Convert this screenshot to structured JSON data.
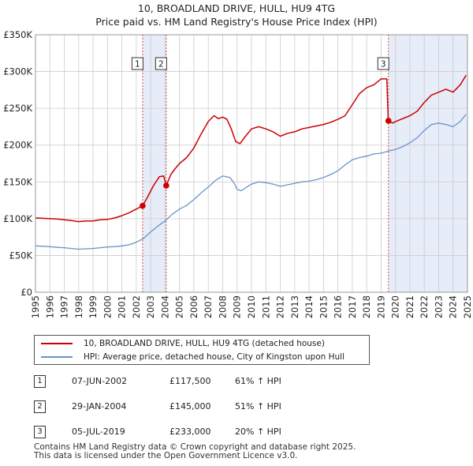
{
  "chart_data": {
    "type": "line",
    "title": "10, BROADLAND DRIVE, HULL, HU9 4TG",
    "subtitle": "Price paid vs. HM Land Registry's House Price Index (HPI)",
    "xlabel": "",
    "ylabel": "",
    "xlim": [
      1995,
      2025
    ],
    "ylim": [
      0,
      350000
    ],
    "grid": true,
    "legend_position": "bottom",
    "y_ticks": [
      {
        "value": 0,
        "label": "£0"
      },
      {
        "value": 50000,
        "label": "£50K"
      },
      {
        "value": 100000,
        "label": "£100K"
      },
      {
        "value": 150000,
        "label": "£150K"
      },
      {
        "value": 200000,
        "label": "£200K"
      },
      {
        "value": 250000,
        "label": "£250K"
      },
      {
        "value": 300000,
        "label": "£300K"
      },
      {
        "value": 350000,
        "label": "£350K"
      }
    ],
    "x_ticks": [
      "1995",
      "1996",
      "1997",
      "1998",
      "1999",
      "2000",
      "2001",
      "2002",
      "2003",
      "2004",
      "2005",
      "2006",
      "2007",
      "2008",
      "2009",
      "2010",
      "2011",
      "2012",
      "2013",
      "2014",
      "2015",
      "2016",
      "2017",
      "2018",
      "2019",
      "2020",
      "2021",
      "2022",
      "2023",
      "2024",
      "2025"
    ],
    "series": [
      {
        "name": "10, BROADLAND DRIVE, HULL, HU9 4TG (detached house)",
        "color": "#cc0000",
        "points": [
          [
            1995.0,
            101000
          ],
          [
            1995.5,
            100500
          ],
          [
            1996.0,
            100000
          ],
          [
            1996.5,
            99500
          ],
          [
            1997.0,
            98500
          ],
          [
            1997.5,
            97500
          ],
          [
            1998.0,
            96000
          ],
          [
            1998.5,
            97000
          ],
          [
            1999.0,
            97000
          ],
          [
            1999.5,
            98500
          ],
          [
            2000.0,
            99000
          ],
          [
            2000.5,
            101000
          ],
          [
            2001.0,
            104000
          ],
          [
            2001.5,
            108000
          ],
          [
            2002.0,
            113000
          ],
          [
            2002.44,
            117500
          ],
          [
            2002.8,
            130000
          ],
          [
            2003.2,
            145000
          ],
          [
            2003.6,
            157000
          ],
          [
            2003.9,
            158000
          ],
          [
            2004.08,
            145000
          ],
          [
            2004.4,
            160000
          ],
          [
            2004.7,
            168000
          ],
          [
            2005.0,
            175000
          ],
          [
            2005.5,
            183000
          ],
          [
            2006.0,
            196000
          ],
          [
            2006.5,
            215000
          ],
          [
            2007.0,
            232000
          ],
          [
            2007.4,
            240000
          ],
          [
            2007.7,
            236000
          ],
          [
            2008.0,
            238000
          ],
          [
            2008.3,
            235000
          ],
          [
            2008.6,
            222000
          ],
          [
            2008.9,
            205000
          ],
          [
            2009.2,
            202000
          ],
          [
            2009.5,
            210000
          ],
          [
            2010.0,
            222000
          ],
          [
            2010.5,
            225000
          ],
          [
            2011.0,
            222000
          ],
          [
            2011.5,
            218000
          ],
          [
            2012.0,
            212000
          ],
          [
            2012.5,
            216000
          ],
          [
            2013.0,
            218000
          ],
          [
            2013.5,
            222000
          ],
          [
            2014.0,
            224000
          ],
          [
            2014.5,
            226000
          ],
          [
            2015.0,
            228000
          ],
          [
            2015.5,
            231000
          ],
          [
            2016.0,
            235000
          ],
          [
            2016.5,
            240000
          ],
          [
            2017.0,
            255000
          ],
          [
            2017.5,
            270000
          ],
          [
            2018.0,
            278000
          ],
          [
            2018.5,
            282000
          ],
          [
            2019.0,
            290000
          ],
          [
            2019.4,
            290000
          ],
          [
            2019.5,
            233000
          ],
          [
            2019.8,
            230000
          ],
          [
            2020.0,
            232000
          ],
          [
            2020.5,
            236000
          ],
          [
            2021.0,
            240000
          ],
          [
            2021.5,
            246000
          ],
          [
            2022.0,
            258000
          ],
          [
            2022.5,
            268000
          ],
          [
            2023.0,
            272000
          ],
          [
            2023.5,
            276000
          ],
          [
            2024.0,
            272000
          ],
          [
            2024.5,
            282000
          ],
          [
            2024.9,
            295000
          ]
        ]
      },
      {
        "name": "HPI: Average price, detached house, City of Kingston upon Hull",
        "color": "#6b93c8",
        "points": [
          [
            1995.0,
            63000
          ],
          [
            1995.5,
            62500
          ],
          [
            1996.0,
            62000
          ],
          [
            1996.5,
            61000
          ],
          [
            1997.0,
            60500
          ],
          [
            1997.5,
            59500
          ],
          [
            1998.0,
            58500
          ],
          [
            1998.5,
            59000
          ],
          [
            1999.0,
            59500
          ],
          [
            1999.5,
            60500
          ],
          [
            2000.0,
            61500
          ],
          [
            2000.5,
            62000
          ],
          [
            2001.0,
            63000
          ],
          [
            2001.5,
            64500
          ],
          [
            2002.0,
            68000
          ],
          [
            2002.5,
            73000
          ],
          [
            2003.0,
            82000
          ],
          [
            2003.5,
            90000
          ],
          [
            2004.0,
            97000
          ],
          [
            2004.5,
            106000
          ],
          [
            2005.0,
            113000
          ],
          [
            2005.5,
            118000
          ],
          [
            2006.0,
            126000
          ],
          [
            2006.5,
            135000
          ],
          [
            2007.0,
            143000
          ],
          [
            2007.5,
            152000
          ],
          [
            2008.0,
            158000
          ],
          [
            2008.5,
            156000
          ],
          [
            2008.8,
            148000
          ],
          [
            2009.0,
            140000
          ],
          [
            2009.3,
            138000
          ],
          [
            2009.6,
            142000
          ],
          [
            2010.0,
            147000
          ],
          [
            2010.5,
            150000
          ],
          [
            2011.0,
            149000
          ],
          [
            2011.5,
            147000
          ],
          [
            2012.0,
            144000
          ],
          [
            2012.5,
            146000
          ],
          [
            2013.0,
            148000
          ],
          [
            2013.5,
            150000
          ],
          [
            2014.0,
            151000
          ],
          [
            2014.5,
            153000
          ],
          [
            2015.0,
            156000
          ],
          [
            2015.5,
            160000
          ],
          [
            2016.0,
            165000
          ],
          [
            2016.5,
            173000
          ],
          [
            2017.0,
            180000
          ],
          [
            2017.5,
            183000
          ],
          [
            2018.0,
            185000
          ],
          [
            2018.5,
            188000
          ],
          [
            2019.0,
            189000
          ],
          [
            2019.5,
            192000
          ],
          [
            2020.0,
            194000
          ],
          [
            2020.5,
            198000
          ],
          [
            2021.0,
            203000
          ],
          [
            2021.5,
            210000
          ],
          [
            2022.0,
            220000
          ],
          [
            2022.5,
            228000
          ],
          [
            2023.0,
            230000
          ],
          [
            2023.5,
            228000
          ],
          [
            2024.0,
            225000
          ],
          [
            2024.5,
            232000
          ],
          [
            2024.9,
            242000
          ]
        ]
      }
    ],
    "sales": [
      {
        "label": "1",
        "date": "07-JUN-2002",
        "x": 2002.44,
        "price": 117500,
        "price_text": "£117,500",
        "hpi_diff": "61% ↑ HPI"
      },
      {
        "label": "2",
        "date": "29-JAN-2004",
        "x": 2004.08,
        "price": 145000,
        "price_text": "£145,000",
        "hpi_diff": "51% ↑ HPI"
      },
      {
        "label": "3",
        "date": "05-JUL-2019",
        "x": 2019.51,
        "price": 233000,
        "price_text": "£233,000",
        "hpi_diff": "20% ↑ HPI"
      }
    ],
    "shaded_ranges": [
      [
        2002.44,
        2004.08
      ],
      [
        2019.51,
        2025.0
      ]
    ],
    "colors": {
      "price": "#cc0000",
      "hpi": "#6b93c8",
      "shade": "#e6ecf8",
      "grid": "#cccccc",
      "marker_line": "#cc0000"
    }
  },
  "footer": {
    "line1": "Contains HM Land Registry data © Crown copyright and database right 2025.",
    "line2": "This data is licensed under the Open Government Licence v3.0."
  }
}
